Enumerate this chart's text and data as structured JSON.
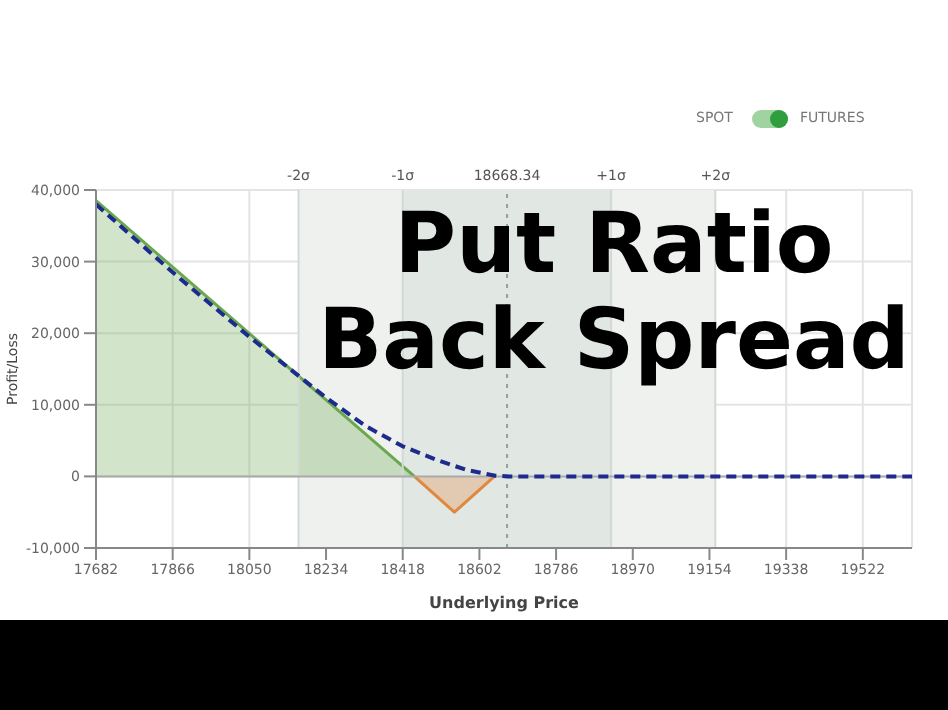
{
  "chart_data": {
    "type": "area",
    "xlabel": "Underlying Price",
    "ylabel": "Profit/Loss",
    "xlim": [
      17682,
      19640
    ],
    "xticks": [
      17682,
      17866,
      18050,
      18234,
      18418,
      18602,
      18786,
      18970,
      19154,
      19338,
      19522
    ],
    "ylim": [
      -10000,
      40000
    ],
    "yticks": [
      {
        "value": -10000,
        "label": "-10,000"
      },
      {
        "value": 0,
        "label": "0"
      },
      {
        "value": 10000,
        "label": "10,000"
      },
      {
        "value": 20000,
        "label": "20,000"
      },
      {
        "value": 30000,
        "label": "30,000"
      },
      {
        "value": 40000,
        "label": "40,000"
      }
    ],
    "series": [
      {
        "color": "#6aa84f",
        "x": [
          17682,
          18446
        ],
        "values": [
          38500,
          0
        ]
      },
      {
        "color": "#e0883e",
        "x": [
          18446,
          18542,
          18638
        ],
        "values": [
          0,
          -5000,
          0
        ]
      },
      {
        "type": "line",
        "color": "#1c2b8c",
        "line_style": "dashed",
        "x": [
          17682,
          17866,
          18050,
          18234,
          18330,
          18418,
          18500,
          18571,
          18640,
          18670,
          19640
        ],
        "values": [
          38000,
          28500,
          19500,
          11000,
          7000,
          4200,
          2300,
          900,
          100,
          0,
          0
        ]
      }
    ],
    "bands": [
      {
        "axis": "x",
        "from": 18168,
        "to": 19168,
        "color": "#eef1ee"
      },
      {
        "axis": "x",
        "from": 18418,
        "to": 18918,
        "color": "#e1e7e3"
      }
    ],
    "ref_lines": [
      {
        "axis": "x",
        "value": 18168,
        "label": "-2σ",
        "color": "#d5d9d6"
      },
      {
        "axis": "x",
        "value": 18418,
        "label": "-1σ",
        "color": "#d5d9d6"
      },
      {
        "axis": "x",
        "value": 18668.34,
        "label": "18668.34",
        "color": "#8fa39a",
        "line_style": "dotted"
      },
      {
        "axis": "x",
        "value": 18918,
        "label": "+1σ",
        "color": "#d5d9d6"
      },
      {
        "axis": "x",
        "value": 19168,
        "label": "+2σ",
        "color": "#d5d9d6"
      },
      {
        "axis": "y",
        "value": 0,
        "color": "#aaaaaa"
      }
    ],
    "grid": true,
    "marker": "none",
    "annotations": [
      "Put Ratio Back Spread",
      "SPOT",
      "FUTURES"
    ]
  }
}
